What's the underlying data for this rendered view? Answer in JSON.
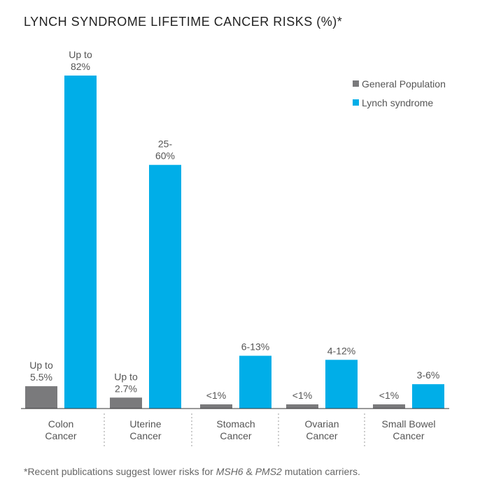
{
  "chart_data": {
    "type": "bar",
    "title": "LYNCH SYNDROME LIFETIME CANCER RISKS (%)*",
    "categories": [
      [
        "Colon",
        "Cancer"
      ],
      [
        "Uterine",
        "Cancer"
      ],
      [
        "Stomach",
        "Cancer"
      ],
      [
        "Ovarian",
        "Cancer"
      ],
      [
        "Small Bowel",
        "Cancer"
      ]
    ],
    "series": [
      {
        "name": "General Population",
        "color": "#7a7a7c",
        "values": [
          5.5,
          2.7,
          1,
          1,
          1
        ],
        "labels": [
          [
            "Up to",
            "5.5%"
          ],
          [
            "Up to",
            "2.7%"
          ],
          [
            "<1%"
          ],
          [
            "<1%"
          ],
          [
            "<1%"
          ]
        ]
      },
      {
        "name": "Lynch syndrome",
        "color": "#00aee8",
        "values": [
          82,
          60,
          13,
          12,
          6
        ],
        "labels": [
          [
            "Up to",
            "82%"
          ],
          [
            "25-",
            "60%"
          ],
          [
            "6-13%"
          ],
          [
            "4-12%"
          ],
          [
            "3-6%"
          ]
        ]
      }
    ],
    "ylim": [
      0,
      82
    ],
    "legend": "top-right",
    "grid": false,
    "footnote": {
      "prefix": "*Recent publications suggest lower risks for ",
      "gene1": "MSH6",
      "mid": " & ",
      "gene2": "PMS2",
      "suffix": " mutation carriers."
    }
  }
}
